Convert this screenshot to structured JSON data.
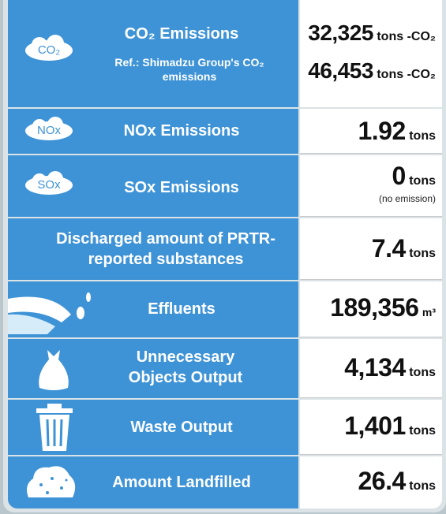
{
  "rows": [
    {
      "icon_label": "CO₂",
      "label": "CO₂ Emissions",
      "value": "32,325",
      "unit": "tons -CO₂",
      "sub_label": "Ref.: Shimadzu Group's CO₂ emissions",
      "sub_value": "46,453",
      "sub_unit": "tons -CO₂"
    },
    {
      "icon_label": "NOx",
      "label": "NOx Emissions",
      "value": "1.92",
      "unit": "tons"
    },
    {
      "icon_label": "SOx",
      "label": "SOx Emissions",
      "value": "0",
      "unit": "tons",
      "note": "(no emission)"
    },
    {
      "label": "Discharged amount of PRTR-reported substances",
      "value": "7.4",
      "unit": "tons"
    },
    {
      "label": "Effluents",
      "value": "189,356",
      "unit": "m³"
    },
    {
      "label": "Unnecessary Objects Output",
      "value": "4,134",
      "unit": "tons"
    },
    {
      "label": "Waste Output",
      "value": "1,401",
      "unit": "tons"
    },
    {
      "label": "Amount Landfilled",
      "value": "26.4",
      "unit": "tons"
    }
  ]
}
